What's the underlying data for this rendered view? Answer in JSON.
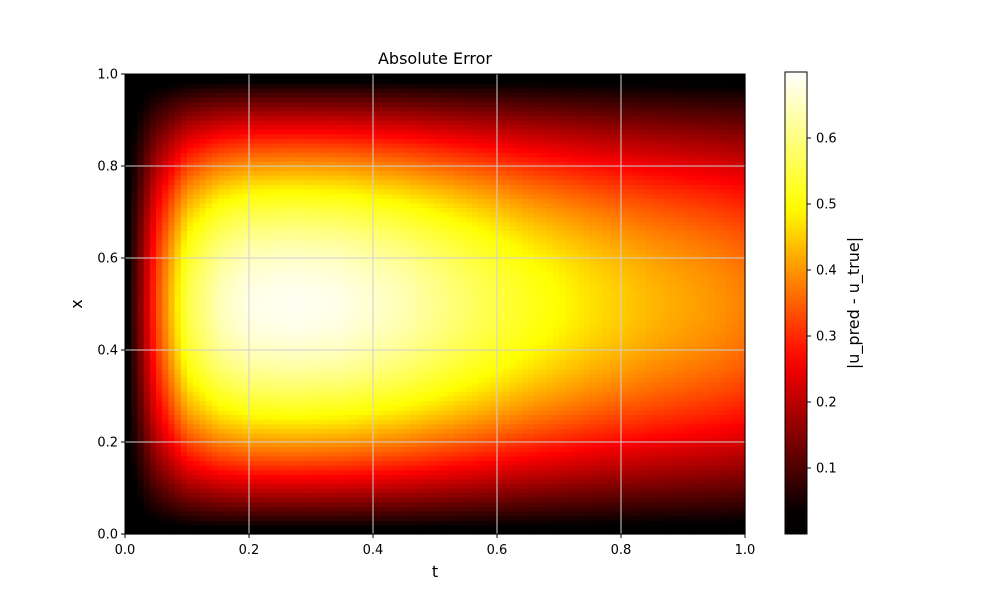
{
  "chart_data": {
    "type": "heatmap",
    "title": "Absolute Error",
    "xlabel": "t",
    "ylabel": "x",
    "colorbar_label": "|u_pred - u_true|",
    "colormap": "hot",
    "xlim": [
      0,
      1
    ],
    "ylim": [
      0,
      1
    ],
    "x_ticks": [
      0.0,
      0.2,
      0.4,
      0.6,
      0.8,
      1.0
    ],
    "x_tick_labels": [
      "0.0",
      "0.2",
      "0.4",
      "0.6",
      "0.8",
      "1.0"
    ],
    "y_ticks": [
      0.0,
      0.2,
      0.4,
      0.6,
      0.8,
      1.0
    ],
    "y_tick_labels": [
      "0.0",
      "0.2",
      "0.4",
      "0.6",
      "0.8",
      "1.0"
    ],
    "colorbar_range": [
      0.0,
      0.7
    ],
    "colorbar_ticks": [
      0.1,
      0.2,
      0.3,
      0.4,
      0.5,
      0.6
    ],
    "colorbar_tick_labels": [
      "0.1",
      "0.2",
      "0.3",
      "0.4",
      "0.5",
      "0.6"
    ],
    "grid": true,
    "grid_resolution": [
      100,
      100
    ],
    "t_samples": [
      0.0,
      0.02,
      0.05,
      0.1,
      0.15,
      0.2,
      0.27,
      0.35,
      0.45,
      0.55,
      0.65,
      0.75,
      0.85,
      0.95,
      1.0
    ],
    "peak_error_at_x_half": [
      0.0,
      0.12,
      0.32,
      0.55,
      0.64,
      0.68,
      0.69,
      0.68,
      0.64,
      0.58,
      0.52,
      0.47,
      0.43,
      0.4,
      0.38
    ]
  }
}
